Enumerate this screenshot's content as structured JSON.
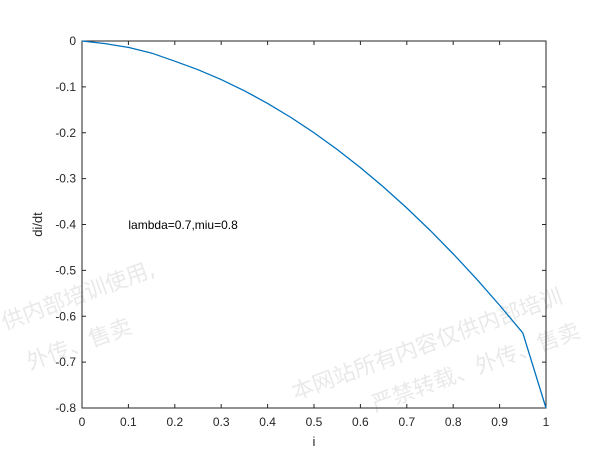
{
  "chart_data": {
    "type": "line",
    "xlabel": "i",
    "ylabel": "di/dt",
    "xlim": [
      0,
      1
    ],
    "ylim": [
      -0.8,
      0
    ],
    "x_ticks": [
      "0",
      "0.1",
      "0.2",
      "0.3",
      "0.4",
      "0.5",
      "0.6",
      "0.7",
      "0.8",
      "0.9",
      "1"
    ],
    "y_ticks": [
      "0",
      "-0.1",
      "-0.2",
      "-0.3",
      "-0.4",
      "-0.5",
      "-0.6",
      "-0.7",
      "-0.8"
    ],
    "annotation": "lambda=0.7,miu=0.8",
    "grid": false,
    "series": [
      {
        "color": "#0072BD",
        "x": [
          0,
          0.05,
          0.1,
          0.15,
          0.2,
          0.25,
          0.3,
          0.35,
          0.4,
          0.45,
          0.5,
          0.55,
          0.6,
          0.65,
          0.7,
          0.75,
          0.8,
          0.85,
          0.9,
          0.95,
          1
        ],
        "y": [
          0,
          -0.0058,
          -0.014,
          -0.0263,
          -0.044,
          -0.0625,
          -0.084,
          -0.1085,
          -0.136,
          -0.1665,
          -0.2,
          -0.2365,
          -0.276,
          -0.3185,
          -0.364,
          -0.4125,
          -0.464,
          -0.5185,
          -0.576,
          -0.6365,
          -0.8
        ]
      }
    ]
  },
  "watermark": {
    "line1": "供内部培训使用,",
    "line2": "外传、售卖",
    "line3": "本网站所有内容仅供内部培训",
    "line4": "严禁转载、外传、售卖"
  }
}
